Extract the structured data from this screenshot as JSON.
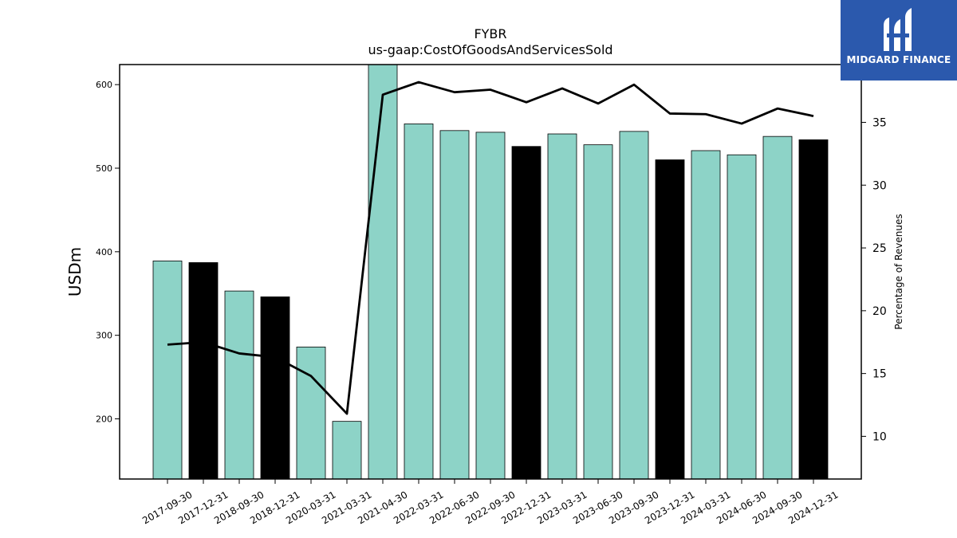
{
  "chart_data": {
    "type": "bar",
    "title": "FYBR",
    "subtitle": "us-gaap:CostOfGoodsAndServicesSold",
    "ylabel": "USDm",
    "y2label": "Percentage of Revenues",
    "ylim": [
      128,
      624
    ],
    "y2lim": [
      6.6,
      39.6
    ],
    "yticks": [
      200,
      300,
      400,
      500,
      600
    ],
    "y2ticks": [
      10,
      15,
      20,
      25,
      30,
      35
    ],
    "categories": [
      "2017-09-30",
      "2017-12-31",
      "2018-09-30",
      "2018-12-31",
      "2020-03-31",
      "2021-03-31",
      "2021-04-30",
      "2022-03-31",
      "2022-06-30",
      "2022-09-30",
      "2022-12-31",
      "2023-03-31",
      "2023-06-30",
      "2023-09-30",
      "2023-12-31",
      "2024-03-31",
      "2024-06-30",
      "2024-09-30",
      "2024-12-31"
    ],
    "series": [
      {
        "type": "bar",
        "values": [
          389,
          387,
          353,
          346,
          286,
          197,
          625,
          553,
          545,
          543,
          526,
          541,
          528,
          544,
          510,
          521,
          516,
          538,
          534
        ],
        "colors": [
          "#8dd3c7",
          "#000000",
          "#8dd3c7",
          "#000000",
          "#8dd3c7",
          "#8dd3c7",
          "#8dd3c7",
          "#8dd3c7",
          "#8dd3c7",
          "#8dd3c7",
          "#000000",
          "#8dd3c7",
          "#8dd3c7",
          "#8dd3c7",
          "#000000",
          "#8dd3c7",
          "#8dd3c7",
          "#8dd3c7",
          "#000000"
        ]
      },
      {
        "type": "line",
        "axis": "right",
        "color": "#000000",
        "values": [
          17.3,
          17.5,
          16.6,
          16.3,
          14.8,
          11.8,
          37.2,
          38.2,
          37.4,
          37.6,
          36.6,
          37.7,
          36.5,
          38.0,
          35.7,
          35.65,
          34.9,
          36.1,
          35.5
        ]
      }
    ],
    "grid": false,
    "legend": "none"
  },
  "logo": {
    "text": "MIDGARD FINANCE",
    "color": "#2b59ad"
  }
}
